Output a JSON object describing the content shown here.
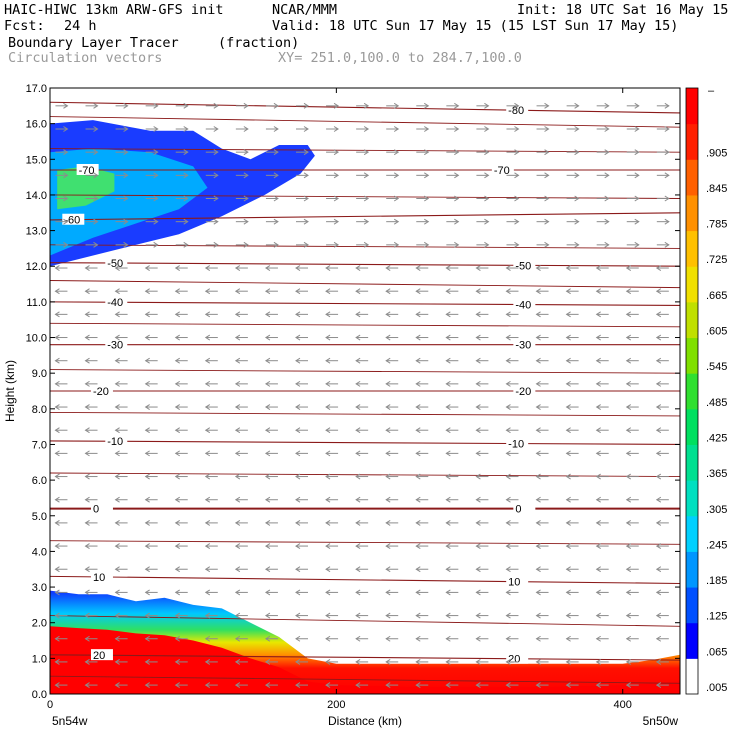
{
  "header": {
    "model": "HAIC-HIWC 13km ARW-GFS init",
    "org": "NCAR/MMM",
    "init": "Init: 18 UTC Sat 16 May 15",
    "fcst_label": "Fcst:",
    "fcst_value": "24 h",
    "valid": "Valid: 18 UTC Sun 17 May 15 (15 LST Sun 17 May 15)",
    "field": "Boundary Layer Tracer",
    "field_units": "(fraction)",
    "overlay": "Circulation vectors",
    "xy": "XY= 251.0,100.0 to 284.7,100.0"
  },
  "colors": {
    "background": "#ffffff",
    "isotherm": "#8b1a1a",
    "vector": "#8c8c8c"
  },
  "chart_data": {
    "type": "heatmap",
    "title": "Boundary Layer Tracer (fraction)",
    "xlabel": "Distance (km)",
    "ylabel": "Height (km)",
    "xlim": [
      0,
      440
    ],
    "ylim": [
      0,
      17
    ],
    "x_ticks": [
      0,
      200,
      400
    ],
    "x_tick_labels": [
      "0",
      "200",
      "400"
    ],
    "y_ticks": [
      0,
      1,
      2,
      3,
      4,
      5,
      6,
      7,
      8,
      9,
      10,
      11,
      12,
      13,
      14,
      15,
      16,
      17
    ],
    "y_tick_labels": [
      "0.0",
      "1.0",
      "2.0",
      "3.0",
      "4.0",
      "5.0",
      "6.0",
      "7.0",
      "8.0",
      "9.0",
      "10.0",
      "11.0",
      "12.0",
      "13.0",
      "14.0",
      "15.0",
      "16.0",
      "17.0"
    ],
    "endpoint_labels": [
      "5n54w",
      "5n50w"
    ],
    "colorbar": {
      "labels": [
        ".005",
        ".065",
        ".125",
        ".185",
        ".245",
        ".305",
        ".365",
        ".425",
        ".485",
        ".545",
        ".605",
        ".665",
        ".725",
        ".785",
        ".845",
        ".905"
      ],
      "top_label": "–",
      "colors": [
        "#ffffff",
        "#0000ff",
        "#0050ff",
        "#0096ff",
        "#00d0ff",
        "#00e0c0",
        "#00e090",
        "#00e060",
        "#30e030",
        "#80e000",
        "#c0e000",
        "#f0e000",
        "#ffc000",
        "#ff9000",
        "#ff6000",
        "#ff2000",
        "#ff0000"
      ]
    },
    "boundary_layer": {
      "x": [
        0,
        20,
        40,
        60,
        80,
        100,
        120,
        140,
        160,
        180,
        200,
        250,
        300,
        350,
        400,
        420,
        440
      ],
      "top": [
        2.9,
        2.8,
        2.8,
        2.6,
        2.7,
        2.5,
        2.4,
        2.0,
        1.6,
        1.0,
        0.85,
        0.85,
        0.85,
        0.85,
        0.85,
        0.95,
        1.1
      ],
      "red_top": [
        1.9,
        1.85,
        1.8,
        1.7,
        1.65,
        1.5,
        1.3,
        1.0,
        0.75,
        0.35,
        0.25,
        0.2,
        0.2,
        0.2,
        0.25,
        0.3,
        0.35
      ]
    },
    "upper_plume": {
      "outer": [
        [
          0,
          12.0
        ],
        [
          20,
          12.2
        ],
        [
          50,
          12.5
        ],
        [
          90,
          12.9
        ],
        [
          120,
          13.4
        ],
        [
          150,
          14.0
        ],
        [
          175,
          14.6
        ],
        [
          185,
          15.1
        ],
        [
          180,
          15.4
        ],
        [
          160,
          15.4
        ],
        [
          140,
          15.0
        ],
        [
          120,
          15.3
        ],
        [
          100,
          15.8
        ],
        [
          70,
          15.8
        ],
        [
          30,
          16.1
        ],
        [
          0,
          16.0
        ]
      ],
      "inner": [
        [
          0,
          12.3
        ],
        [
          30,
          12.8
        ],
        [
          60,
          13.2
        ],
        [
          90,
          13.6
        ],
        [
          110,
          14.2
        ],
        [
          100,
          14.8
        ],
        [
          70,
          15.2
        ],
        [
          30,
          15.3
        ],
        [
          0,
          15.2
        ]
      ],
      "core": [
        [
          5,
          13.6
        ],
        [
          25,
          13.7
        ],
        [
          45,
          14.1
        ],
        [
          45,
          14.6
        ],
        [
          25,
          14.8
        ],
        [
          5,
          14.7
        ]
      ]
    },
    "isotherms": [
      {
        "label": "-80",
        "left": 16.6,
        "right": 16.3,
        "label_x": 320
      },
      {
        "label": "-70",
        "left": 14.7,
        "right": 14.7,
        "label_x": 20,
        "label_x2": 310
      },
      {
        "label": "-60",
        "left": 13.3,
        "right": 13.5,
        "label_x": 10
      },
      {
        "label": "-50",
        "left": 12.1,
        "right": 12.0,
        "label_x": 40,
        "label_x2": 325
      },
      {
        "label": "-40",
        "left": 11.0,
        "right": 10.9,
        "label_x": 40,
        "label_x2": 325
      },
      {
        "label": "-30",
        "left": 9.8,
        "right": 9.8,
        "label_x": 40,
        "label_x2": 325
      },
      {
        "label": "-20",
        "left": 8.5,
        "right": 8.5,
        "label_x": 30,
        "label_x2": 325
      },
      {
        "label": "-10",
        "left": 7.1,
        "right": 7.0,
        "label_x": 40,
        "label_x2": 320
      },
      {
        "label": "0",
        "left": 5.2,
        "right": 5.2,
        "label_x": 30,
        "label_x2": 325,
        "bold": true
      },
      {
        "label": "10",
        "left": 3.3,
        "right": 3.1,
        "label_x": 30,
        "label_x2": 320
      },
      {
        "label": "20",
        "left": 1.1,
        "right": 0.95,
        "label_x": 30,
        "label_x2": 320
      }
    ],
    "extra_contours": [
      {
        "left": 16.2,
        "right": 15.9
      },
      {
        "left": 15.3,
        "right": 15.2
      },
      {
        "left": 14.0,
        "right": 13.9
      },
      {
        "left": 12.6,
        "right": 12.5
      },
      {
        "left": 11.6,
        "right": 11.4
      },
      {
        "left": 10.4,
        "right": 10.3
      },
      {
        "left": 9.1,
        "right": 9.0
      },
      {
        "left": 7.9,
        "right": 7.8
      },
      {
        "left": 6.2,
        "right": 6.1
      },
      {
        "left": 4.3,
        "right": 4.2
      },
      {
        "left": 2.2,
        "right": 1.9
      },
      {
        "left": 0.5,
        "right": 0.3
      }
    ],
    "vectors": {
      "direction_upper": "east",
      "direction_lower": "west",
      "switch_height": 12.5
    },
    "grid": false,
    "legend": "right"
  }
}
